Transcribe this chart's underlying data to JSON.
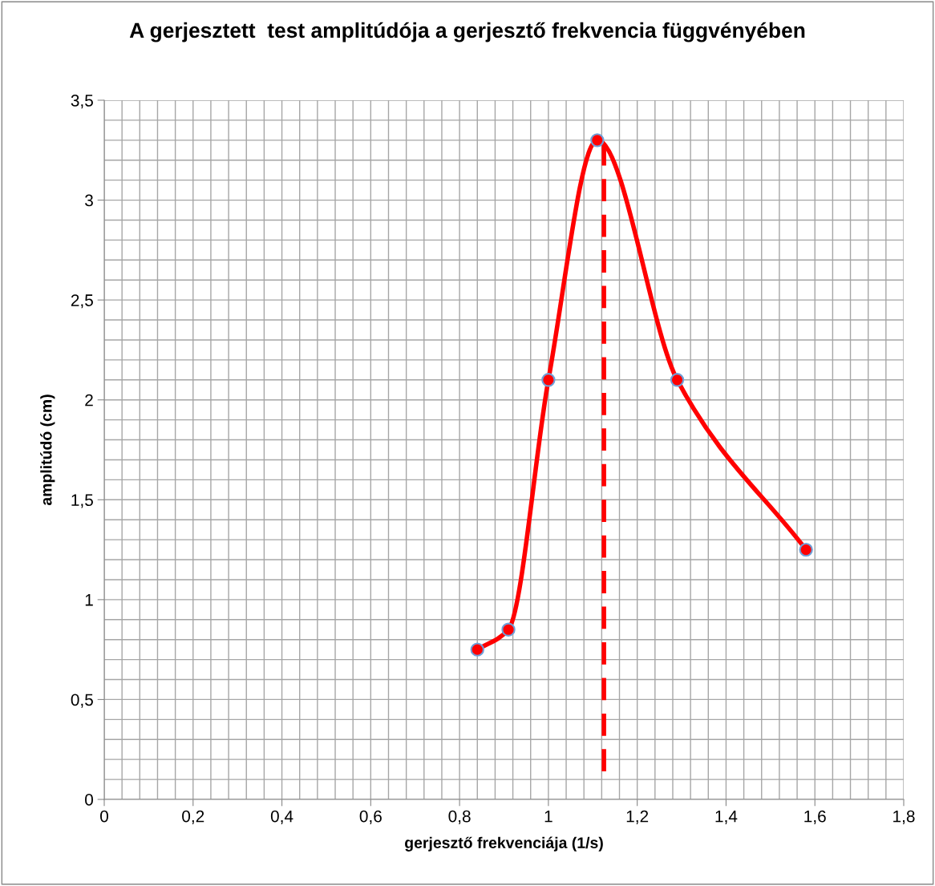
{
  "chart_data": {
    "type": "line",
    "title": "A gerjesztett  test amplitúdója a gerjesztő frekvencia függvényében",
    "xlabel": "gerjesztő frekvenciája (1/s)",
    "ylabel": "amplitúdó (cm)",
    "series": [
      {
        "color": "#ff0000",
        "marker": "circle",
        "line_style": "solid",
        "x": [
          0.84,
          0.91,
          1.0,
          1.11,
          1.29,
          1.58
        ],
        "values": [
          0.75,
          0.85,
          2.1,
          3.3,
          2.1,
          1.25
        ]
      },
      {
        "color": "#ff0000",
        "marker": "none",
        "line_style": "dashed",
        "x": [
          1.125,
          1.125
        ],
        "values": [
          0.14,
          3.3
        ]
      }
    ],
    "xlim": [
      0,
      1.8
    ],
    "ylim": [
      0,
      3.5
    ],
    "xticks": [
      0,
      {
        "value": 0.2,
        "label": "0,2"
      },
      {
        "value": 0.4,
        "label": "0,4"
      },
      {
        "value": 0.6,
        "label": "0,6"
      },
      {
        "value": 0.8,
        "label": "0,8"
      },
      1,
      {
        "value": 1.2,
        "label": "1,2"
      },
      {
        "value": 1.4,
        "label": "1,4"
      },
      {
        "value": 1.6,
        "label": "1,6"
      },
      {
        "value": 1.8,
        "label": "1,8"
      }
    ],
    "yticks": [
      0,
      {
        "value": 0.5,
        "label": "0,5"
      },
      1,
      {
        "value": 1.5,
        "label": "1,5"
      },
      2,
      {
        "value": 2.5,
        "label": "2,5"
      },
      3,
      {
        "value": 3.5,
        "label": "3,5"
      }
    ],
    "grid": true,
    "legend": false
  }
}
